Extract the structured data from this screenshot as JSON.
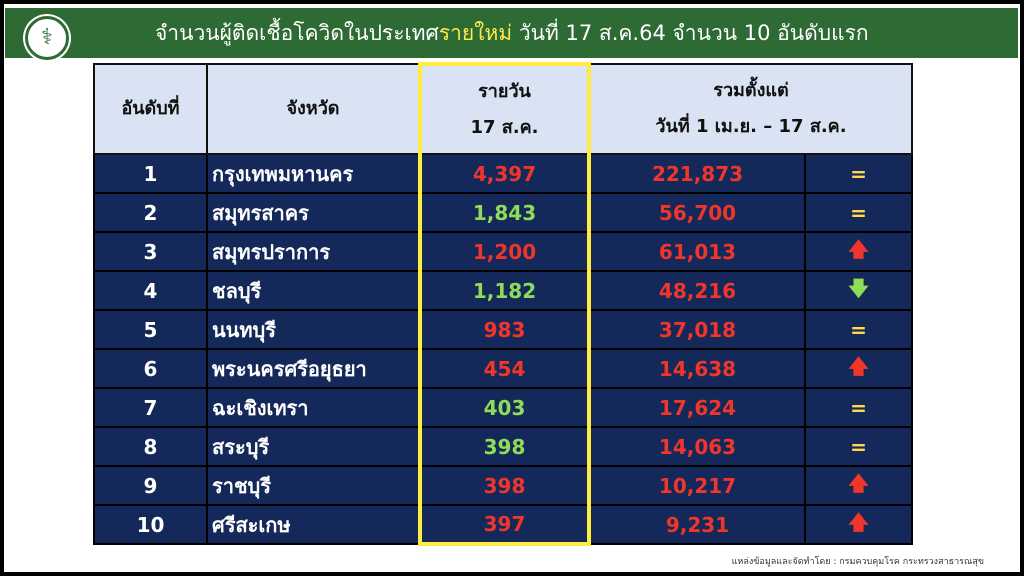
{
  "header": {
    "title_pre": "จำนวนผู้ติดเชื้อโควิดในประเทศ",
    "title_highlight": "รายใหม่",
    "title_post": " วันที่ 17 ส.ค.64 จำนวน 10 อันดับแรก",
    "highlight_color": "#ffe94a"
  },
  "table": {
    "headers": {
      "rank": "อันดับที่",
      "province": "จังหวัด",
      "daily_1": "รายวัน",
      "daily_2": "17 ส.ค.",
      "cum_1": "รวมตั้งแต่",
      "cum_2": "วันที่ 1 เม.ย. – 17 ส.ค."
    },
    "rows": [
      {
        "rank": "1",
        "province": "กรุงเทพมหานคร",
        "daily": "4,397",
        "daily_color": "red",
        "cumulative": "221,873",
        "trend": "="
      },
      {
        "rank": "2",
        "province": "สมุทรสาคร",
        "daily": "1,843",
        "daily_color": "green",
        "cumulative": "56,700",
        "trend": "="
      },
      {
        "rank": "3",
        "province": "สมุทรปราการ",
        "daily": "1,200",
        "daily_color": "red",
        "cumulative": "61,013",
        "trend": "up"
      },
      {
        "rank": "4",
        "province": "ชลบุรี",
        "daily": "1,182",
        "daily_color": "green",
        "cumulative": "48,216",
        "trend": "down"
      },
      {
        "rank": "5",
        "province": "นนทบุรี",
        "daily": "983",
        "daily_color": "red",
        "cumulative": "37,018",
        "trend": "="
      },
      {
        "rank": "6",
        "province": "พระนครศรีอยุธยา",
        "daily": "454",
        "daily_color": "red",
        "cumulative": "14,638",
        "trend": "up"
      },
      {
        "rank": "7",
        "province": "ฉะเชิงเทรา",
        "daily": "403",
        "daily_color": "green",
        "cumulative": "17,624",
        "trend": "="
      },
      {
        "rank": "8",
        "province": "สระบุรี",
        "daily": "398",
        "daily_color": "green",
        "cumulative": "14,063",
        "trend": "="
      },
      {
        "rank": "9",
        "province": "ราชบุรี",
        "daily": "398",
        "daily_color": "red",
        "cumulative": "10,217",
        "trend": "up"
      },
      {
        "rank": "10",
        "province": "ศรีสะเกษ",
        "daily": "397",
        "daily_color": "red",
        "cumulative": "9,231",
        "trend": "up"
      }
    ]
  },
  "source": "แหล่งข้อมูลและจัดทำโดย : กรมควบคุมโรค กระทรวงสาธารณสุข"
}
